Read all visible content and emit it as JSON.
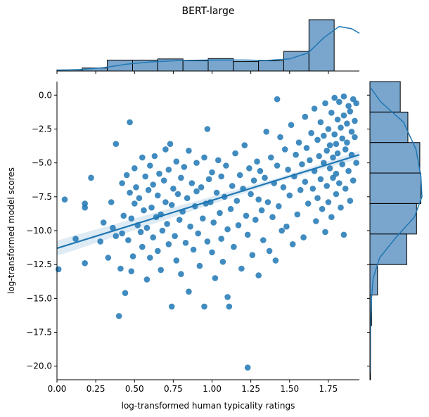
{
  "title": "BERT-large",
  "colors": {
    "point": "#1f77b4",
    "bar_fill": "#7aa6cd",
    "edge": "#000000",
    "axis": "#000000"
  },
  "chart_data": {
    "type": "scatter",
    "title": "BERT-large",
    "xlabel": "log-transformed human typicality ratings",
    "ylabel": "log-transformed model scores",
    "xlim": [
      0.0,
      1.95
    ],
    "ylim": [
      -21.0,
      1.0
    ],
    "xticks": [
      0.0,
      0.25,
      0.5,
      0.75,
      1.0,
      1.25,
      1.5,
      1.75
    ],
    "xtick_labels": [
      "0.00",
      "0.25",
      "0.50",
      "0.75",
      "1.00",
      "1.25",
      "1.50",
      "1.75"
    ],
    "yticks": [
      0.0,
      -2.5,
      -5.0,
      -7.5,
      -10.0,
      -12.5,
      -15.0,
      -17.5,
      -20.0
    ],
    "ytick_labels": [
      "0.0",
      "−2.5",
      "−5.0",
      "−7.5",
      "−10.0",
      "−12.5",
      "−15.0",
      "−17.5",
      "−20.0"
    ],
    "grid": false,
    "regression": {
      "x": [
        0.0,
        1.95
      ],
      "y": [
        -11.3,
        -4.4
      ],
      "ci_halfwidth_ends": 0.55,
      "ci_halfwidth_center": 0.15
    },
    "points": [
      [
        0.01,
        -12.85
      ],
      [
        0.05,
        -7.7
      ],
      [
        0.12,
        -10.6
      ],
      [
        0.18,
        -12.4
      ],
      [
        0.18,
        -8.0
      ],
      [
        0.18,
        -8.3
      ],
      [
        0.22,
        -6.1
      ],
      [
        0.28,
        -10.8
      ],
      [
        0.3,
        -9.4
      ],
      [
        0.33,
        -12.0
      ],
      [
        0.35,
        -7.9
      ],
      [
        0.36,
        -9.8
      ],
      [
        0.38,
        -10.4
      ],
      [
        0.38,
        -3.6
      ],
      [
        0.4,
        -16.3
      ],
      [
        0.41,
        -12.8
      ],
      [
        0.42,
        -10.2
      ],
      [
        0.42,
        -6.5
      ],
      [
        0.43,
        -8.9
      ],
      [
        0.44,
        -14.6
      ],
      [
        0.45,
        -5.9
      ],
      [
        0.46,
        -10.7
      ],
      [
        0.47,
        -2.0
      ],
      [
        0.47,
        -7.2
      ],
      [
        0.48,
        -13.0
      ],
      [
        0.48,
        -9.1
      ],
      [
        0.49,
        -11.9
      ],
      [
        0.5,
        -5.4
      ],
      [
        0.5,
        -8.0
      ],
      [
        0.51,
        -6.8
      ],
      [
        0.52,
        -9.6
      ],
      [
        0.53,
        -7.6
      ],
      [
        0.54,
        -10.1
      ],
      [
        0.55,
        -4.6
      ],
      [
        0.55,
        -11.2
      ],
      [
        0.56,
        -8.5
      ],
      [
        0.57,
        -6.0
      ],
      [
        0.58,
        -13.6
      ],
      [
        0.58,
        -9.8
      ],
      [
        0.59,
        -7.0
      ],
      [
        0.6,
        -5.2
      ],
      [
        0.6,
        -12.0
      ],
      [
        0.61,
        -8.3
      ],
      [
        0.62,
        -10.5
      ],
      [
        0.62,
        -6.6
      ],
      [
        0.63,
        -4.5
      ],
      [
        0.64,
        -9.0
      ],
      [
        0.65,
        -7.4
      ],
      [
        0.65,
        -11.5
      ],
      [
        0.66,
        -5.8
      ],
      [
        0.67,
        -8.8
      ],
      [
        0.67,
        -12.9
      ],
      [
        0.68,
        -10.0
      ],
      [
        0.69,
        -6.3
      ],
      [
        0.7,
        -4.0
      ],
      [
        0.7,
        -7.9
      ],
      [
        0.71,
        -9.5
      ],
      [
        0.72,
        -11.0
      ],
      [
        0.72,
        -5.5
      ],
      [
        0.73,
        -3.6
      ],
      [
        0.74,
        -8.1
      ],
      [
        0.74,
        -15.6
      ],
      [
        0.75,
        -6.9
      ],
      [
        0.76,
        -10.4
      ],
      [
        0.77,
        -12.2
      ],
      [
        0.77,
        -4.9
      ],
      [
        0.78,
        -7.3
      ],
      [
        0.79,
        -9.2
      ],
      [
        0.8,
        -6.1
      ],
      [
        0.8,
        -13.2
      ],
      [
        0.81,
        -8.6
      ],
      [
        0.82,
        -5.3
      ],
      [
        0.83,
        -10.9
      ],
      [
        0.84,
        -7.6
      ],
      [
        0.85,
        -4.1
      ],
      [
        0.85,
        -14.5
      ],
      [
        0.86,
        -9.7
      ],
      [
        0.87,
        -6.5
      ],
      [
        0.88,
        -11.4
      ],
      [
        0.89,
        -8.2
      ],
      [
        0.9,
        -5.0
      ],
      [
        0.9,
        -7.1
      ],
      [
        0.91,
        -10.2
      ],
      [
        0.92,
        -12.6
      ],
      [
        0.93,
        -6.8
      ],
      [
        0.94,
        -9.1
      ],
      [
        0.95,
        -15.6
      ],
      [
        0.95,
        -4.6
      ],
      [
        0.96,
        -8.0
      ],
      [
        0.97,
        -2.5
      ],
      [
        0.97,
        -10.8
      ],
      [
        0.98,
        -6.2
      ],
      [
        0.99,
        -7.9
      ],
      [
        1.0,
        -11.6
      ],
      [
        1.0,
        -5.7
      ],
      [
        1.01,
        -9.4
      ],
      [
        1.02,
        -13.5
      ],
      [
        1.03,
        -7.2
      ],
      [
        1.04,
        -4.8
      ],
      [
        1.05,
        -8.7
      ],
      [
        1.06,
        -10.6
      ],
      [
        1.06,
        -6.0
      ],
      [
        1.07,
        -12.3
      ],
      [
        1.08,
        -7.5
      ],
      [
        1.09,
        -5.2
      ],
      [
        1.1,
        -9.9
      ],
      [
        1.1,
        -14.9
      ],
      [
        1.11,
        -15.6
      ],
      [
        1.12,
        -8.4
      ],
      [
        1.13,
        -6.7
      ],
      [
        1.14,
        -11.2
      ],
      [
        1.15,
        -4.3
      ],
      [
        1.16,
        -7.8
      ],
      [
        1.17,
        -9.6
      ],
      [
        1.18,
        -5.9
      ],
      [
        1.19,
        -12.8
      ],
      [
        1.2,
        -6.9
      ],
      [
        1.21,
        -3.7
      ],
      [
        1.22,
        -8.9
      ],
      [
        1.23,
        -20.1
      ],
      [
        1.23,
        -10.3
      ],
      [
        1.24,
        -5.4
      ],
      [
        1.25,
        -7.3
      ],
      [
        1.26,
        -11.8
      ],
      [
        1.27,
        -6.3
      ],
      [
        1.28,
        -9.2
      ],
      [
        1.29,
        -4.9
      ],
      [
        1.3,
        -13.3
      ],
      [
        1.3,
        -7.7
      ],
      [
        1.31,
        -5.6
      ],
      [
        1.32,
        -8.5
      ],
      [
        1.33,
        -10.7
      ],
      [
        1.34,
        -6.1
      ],
      [
        1.35,
        -2.7
      ],
      [
        1.36,
        -7.9
      ],
      [
        1.37,
        -11.5
      ],
      [
        1.38,
        -4.6
      ],
      [
        1.39,
        -9.0
      ],
      [
        1.4,
        -6.5
      ],
      [
        1.41,
        -12.2
      ],
      [
        1.42,
        -5.2
      ],
      [
        1.42,
        -0.3
      ],
      [
        1.43,
        -8.2
      ],
      [
        1.44,
        -3.1
      ],
      [
        1.45,
        -10.0
      ],
      [
        1.46,
        -6.8
      ],
      [
        1.47,
        -4.0
      ],
      [
        1.48,
        -9.7
      ],
      [
        1.49,
        -5.5
      ],
      [
        1.5,
        -7.4
      ],
      [
        1.51,
        -2.2
      ],
      [
        1.52,
        -11.0
      ],
      [
        1.53,
        -6.0
      ],
      [
        1.54,
        -4.4
      ],
      [
        1.55,
        -8.8
      ],
      [
        1.56,
        -3.5
      ],
      [
        1.57,
        -7.0
      ],
      [
        1.58,
        -5.1
      ],
      [
        1.59,
        -10.5
      ],
      [
        1.6,
        -1.6
      ],
      [
        1.6,
        -6.4
      ],
      [
        1.61,
        -3.9
      ],
      [
        1.62,
        -8.0
      ],
      [
        1.63,
        -4.8
      ],
      [
        1.64,
        -2.8
      ],
      [
        1.65,
        -6.9
      ],
      [
        1.66,
        -1.0
      ],
      [
        1.66,
        -5.6
      ],
      [
        1.67,
        -9.3
      ],
      [
        1.68,
        -3.3
      ],
      [
        1.68,
        -7.6
      ],
      [
        1.69,
        -4.5
      ],
      [
        1.7,
        -2.0
      ],
      [
        1.7,
        -6.2
      ],
      [
        1.71,
        -8.4
      ],
      [
        1.72,
        -3.0
      ],
      [
        1.72,
        -5.0
      ],
      [
        1.73,
        -0.6
      ],
      [
        1.73,
        -10.1
      ],
      [
        1.74,
        -4.1
      ],
      [
        1.74,
        -6.7
      ],
      [
        1.75,
        -2.5
      ],
      [
        1.75,
        -7.9
      ],
      [
        1.76,
        -3.7
      ],
      [
        1.76,
        -5.4
      ],
      [
        1.77,
        -1.3
      ],
      [
        1.77,
        -9.0
      ],
      [
        1.78,
        -4.6
      ],
      [
        1.78,
        -6.1
      ],
      [
        1.79,
        -0.2
      ],
      [
        1.79,
        -2.9
      ],
      [
        1.8,
        -3.6
      ],
      [
        1.8,
        -5.8
      ],
      [
        1.8,
        -7.3
      ],
      [
        1.81,
        -1.8
      ],
      [
        1.81,
        -4.3
      ],
      [
        1.82,
        -0.5
      ],
      [
        1.82,
        -6.5
      ],
      [
        1.83,
        -2.4
      ],
      [
        1.83,
        -8.3
      ],
      [
        1.84,
        -3.2
      ],
      [
        1.84,
        -5.1
      ],
      [
        1.85,
        -0.1
      ],
      [
        1.85,
        -1.5
      ],
      [
        1.85,
        -10.3
      ],
      [
        1.86,
        -4.0
      ],
      [
        1.86,
        -6.9
      ],
      [
        1.87,
        -2.1
      ],
      [
        1.87,
        -3.5
      ],
      [
        1.88,
        -0.8
      ],
      [
        1.88,
        -5.6
      ],
      [
        1.89,
        -1.2
      ],
      [
        1.89,
        -7.8
      ],
      [
        1.9,
        -2.7
      ],
      [
        1.9,
        -4.4
      ],
      [
        1.91,
        -0.3
      ],
      [
        1.91,
        -6.3
      ],
      [
        1.92,
        -1.9
      ],
      [
        1.92,
        -3.1
      ],
      [
        1.93,
        -5.0
      ],
      [
        1.93,
        -0.6
      ]
    ],
    "marginal_x": {
      "bin_edges": [
        0.0,
        0.1625,
        0.325,
        0.4875,
        0.65,
        0.8125,
        0.975,
        1.1375,
        1.3,
        1.4625,
        1.625,
        1.7875,
        1.95
      ],
      "counts": [
        3,
        8,
        29,
        29,
        32,
        27,
        33,
        25,
        27,
        52,
        136,
        0
      ],
      "kde": [
        [
          0.0,
          2
        ],
        [
          0.15,
          4
        ],
        [
          0.3,
          9
        ],
        [
          0.45,
          18
        ],
        [
          0.6,
          24
        ],
        [
          0.8,
          28
        ],
        [
          1.0,
          29
        ],
        [
          1.2,
          29
        ],
        [
          1.35,
          28
        ],
        [
          1.5,
          32
        ],
        [
          1.62,
          48
        ],
        [
          1.72,
          88
        ],
        [
          1.82,
          118
        ],
        [
          1.9,
          112
        ],
        [
          1.95,
          100
        ]
      ]
    },
    "marginal_y": {
      "bin_edges": [
        1.0,
        -1.25,
        -3.5,
        -5.75,
        -8.0,
        -10.25,
        -12.5,
        -14.75,
        -17.0,
        -19.25,
        -21.0
      ],
      "counts": [
        56,
        70,
        92,
        94,
        86,
        68,
        14,
        3,
        1,
        1
      ],
      "kde": [
        [
          0.5,
          2
        ],
        [
          -0.5,
          20
        ],
        [
          -2.0,
          62
        ],
        [
          -4.0,
          85
        ],
        [
          -6.0,
          94
        ],
        [
          -7.5,
          96
        ],
        [
          -9.0,
          82
        ],
        [
          -10.5,
          48
        ],
        [
          -12.0,
          18
        ],
        [
          -13.5,
          6
        ],
        [
          -15.0,
          3
        ],
        [
          -17.0,
          1
        ],
        [
          -19.0,
          0.5
        ],
        [
          -20.5,
          0.3
        ]
      ]
    }
  }
}
